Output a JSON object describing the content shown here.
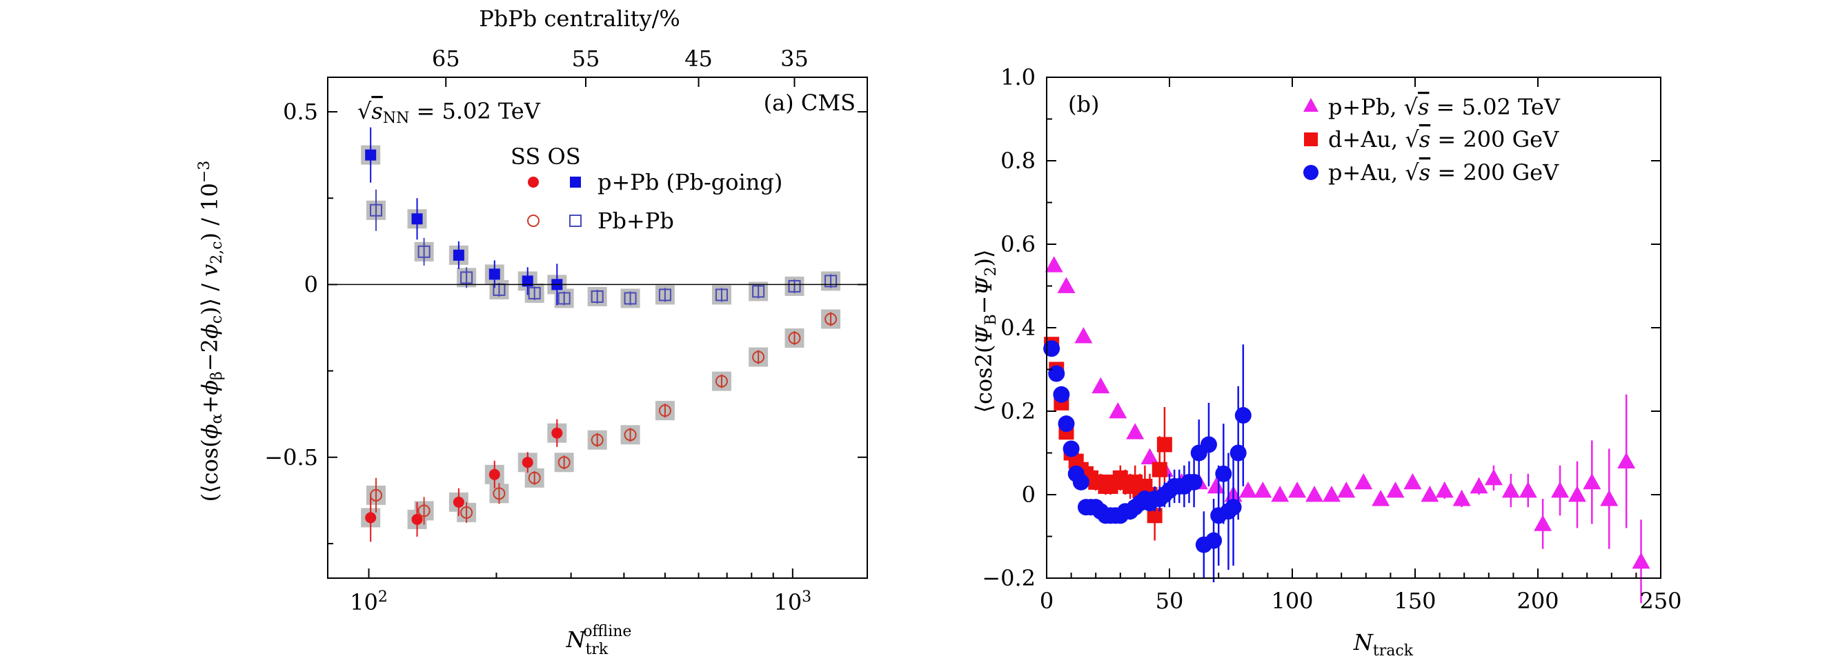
{
  "chart_data": [
    {
      "panel": "(a)",
      "type": "scatter",
      "x_scale": "log",
      "xlim": [
        80,
        1500
      ],
      "ylim": [
        -0.85,
        0.6
      ],
      "xlabel": "N_trk^offline",
      "ylabel": "(<cos(φα+φβ−2φc)>/v2,c)/10^-3",
      "top_axis_label": "PbPb centrality/%",
      "top_ticks": [
        {
          "x": 152,
          "label": "65"
        },
        {
          "x": 325,
          "label": "55"
        },
        {
          "x": 600,
          "label": "45"
        },
        {
          "x": 1010,
          "label": "35"
        }
      ],
      "x_ticks": [
        {
          "x": 100,
          "label": "10^2"
        },
        {
          "x": 1000,
          "label": "10^3"
        }
      ],
      "y_ticks": [
        {
          "y": 0.5,
          "label": "0.5"
        },
        {
          "y": 0,
          "label": "0"
        },
        {
          "y": -0.5,
          "label": "−0.5"
        }
      ],
      "annotations": [
        "√sNN = 5.02 TeV",
        "(a) CMS"
      ],
      "legend_header": "SS OS",
      "legend": [
        "p+Pb (Pb-going)",
        "Pb+Pb"
      ],
      "series": [
        {
          "name": "p+Pb SS",
          "marker": "filled-circle",
          "color": "#e8141c",
          "x": [
            101,
            130,
            163,
            198,
            237,
            278
          ],
          "y": [
            -0.675,
            -0.68,
            -0.63,
            -0.55,
            -0.515,
            -0.43
          ],
          "err": [
            0.07,
            0.05,
            0.04,
            0.04,
            0.03,
            0.04
          ]
        },
        {
          "name": "p+Pb OS",
          "marker": "filled-square",
          "color": "#1010e0",
          "x": [
            101,
            130,
            163,
            198,
            237,
            278
          ],
          "y": [
            0.375,
            0.19,
            0.085,
            0.03,
            0.01,
            0.0
          ],
          "err": [
            0.08,
            0.06,
            0.04,
            0.04,
            0.04,
            0.06
          ]
        },
        {
          "name": "Pb+Pb SS",
          "marker": "open-circle",
          "color": "#cc3a2a",
          "x": [
            104,
            135,
            170,
            203,
            246,
            289,
            346,
            414,
            500,
            680,
            830,
            1010,
            1230
          ],
          "y": [
            -0.61,
            -0.655,
            -0.66,
            -0.605,
            -0.56,
            -0.515,
            -0.45,
            -0.435,
            -0.365,
            -0.28,
            -0.21,
            -0.155,
            -0.1
          ],
          "err": [
            0.05,
            0.04,
            0.03,
            0.03,
            0.02,
            0.02,
            0.02,
            0.02,
            0.02,
            0.02,
            0.02,
            0.02,
            0.02
          ]
        },
        {
          "name": "Pb+Pb OS",
          "marker": "open-square",
          "color": "#4a4ab8",
          "x": [
            104,
            135,
            170,
            203,
            246,
            289,
            346,
            414,
            500,
            680,
            830,
            1010,
            1230
          ],
          "y": [
            0.215,
            0.095,
            0.02,
            -0.015,
            -0.025,
            -0.04,
            -0.035,
            -0.04,
            -0.03,
            -0.03,
            -0.02,
            -0.005,
            0.01
          ],
          "err": [
            0.06,
            0.04,
            0.03,
            0.02,
            0.02,
            0.02,
            0.02,
            0.02,
            0.02,
            0.02,
            0.02,
            0.02,
            0.02
          ]
        }
      ]
    },
    {
      "panel": "(b)",
      "type": "scatter",
      "xlim": [
        0,
        250
      ],
      "ylim": [
        -0.2,
        1.0
      ],
      "xlabel": "N_track",
      "ylabel": "<cos2(ΨB−Ψ2)>",
      "x_ticks": [
        {
          "x": 0,
          "label": "0"
        },
        {
          "x": 50,
          "label": "50"
        },
        {
          "x": 100,
          "label": "100"
        },
        {
          "x": 150,
          "label": "150"
        },
        {
          "x": 200,
          "label": "200"
        },
        {
          "x": 250,
          "label": "250"
        }
      ],
      "y_ticks": [
        {
          "y": -0.2,
          "label": "−0.2"
        },
        {
          "y": 0,
          "label": "0"
        },
        {
          "y": 0.2,
          "label": "0.2"
        },
        {
          "y": 0.4,
          "label": "0.4"
        },
        {
          "y": 0.6,
          "label": "0.6"
        },
        {
          "y": 0.8,
          "label": "0.8"
        },
        {
          "y": 1.0,
          "label": "1.0"
        }
      ],
      "legend": [
        {
          "label": "p+Pb, √s = 5.02 TeV",
          "marker": "triangle",
          "color": "#ee22ee"
        },
        {
          "label": "d+Au, √s = 200 GeV",
          "marker": "square",
          "color": "#ee1111"
        },
        {
          "label": "p+Au, √s = 200 GeV",
          "marker": "circle",
          "color": "#1111ee"
        }
      ],
      "series": [
        {
          "name": "p+Pb",
          "marker": "triangle",
          "color": "#ee22ee",
          "x": [
            3,
            8,
            15,
            22,
            29,
            36,
            42,
            48,
            55,
            62,
            69,
            76,
            82,
            88,
            95,
            102,
            109,
            116,
            122,
            129,
            136,
            142,
            149,
            156,
            162,
            169,
            176,
            182,
            189,
            196,
            202,
            209,
            216,
            222,
            229,
            236,
            242
          ],
          "y": [
            0.55,
            0.5,
            0.38,
            0.26,
            0.2,
            0.15,
            0.09,
            0.06,
            0.03,
            0.03,
            0.02,
            0.0,
            0.01,
            0.01,
            0.0,
            0.01,
            0.0,
            0.0,
            0.01,
            0.03,
            -0.01,
            0.01,
            0.03,
            0.0,
            0.01,
            -0.01,
            0.02,
            0.04,
            0.01,
            0.01,
            -0.07,
            0.01,
            0.0,
            0.03,
            -0.01,
            0.08,
            -0.16
          ],
          "err": [
            0.01,
            0.01,
            0.01,
            0.01,
            0.01,
            0.01,
            0.01,
            0.01,
            0.01,
            0.01,
            0.01,
            0.01,
            0.01,
            0.01,
            0.01,
            0.01,
            0.01,
            0.01,
            0.01,
            0.01,
            0.01,
            0.01,
            0.01,
            0.01,
            0.02,
            0.02,
            0.02,
            0.03,
            0.04,
            0.04,
            0.06,
            0.06,
            0.08,
            0.1,
            0.12,
            0.16,
            0.1
          ]
        },
        {
          "name": "d+Au",
          "marker": "square",
          "color": "#ee1111",
          "x": [
            2,
            4,
            6,
            8,
            10,
            12,
            14,
            16,
            18,
            20,
            22,
            24,
            26,
            28,
            30,
            32,
            34,
            36,
            38,
            40,
            42,
            44,
            46,
            48
          ],
          "y": [
            0.36,
            0.3,
            0.22,
            0.15,
            0.1,
            0.08,
            0.06,
            0.05,
            0.04,
            0.03,
            0.03,
            0.02,
            0.02,
            0.03,
            0.04,
            0.03,
            0.02,
            0.03,
            0.01,
            0.02,
            0.0,
            -0.05,
            0.06,
            0.12
          ],
          "err": [
            0.01,
            0.01,
            0.01,
            0.01,
            0.01,
            0.01,
            0.01,
            0.01,
            0.01,
            0.02,
            0.02,
            0.02,
            0.02,
            0.02,
            0.03,
            0.03,
            0.03,
            0.04,
            0.04,
            0.05,
            0.05,
            0.06,
            0.08,
            0.09
          ]
        },
        {
          "name": "p+Au",
          "marker": "circle",
          "color": "#1111ee",
          "x": [
            2,
            4,
            6,
            8,
            10,
            12,
            14,
            16,
            18,
            20,
            22,
            24,
            26,
            28,
            30,
            32,
            34,
            36,
            38,
            40,
            42,
            44,
            46,
            48,
            50,
            52,
            54,
            56,
            58,
            60,
            62,
            64,
            66,
            68,
            70,
            72,
            74,
            76,
            78,
            80
          ],
          "y": [
            0.35,
            0.29,
            0.24,
            0.17,
            0.11,
            0.05,
            0.03,
            -0.03,
            -0.03,
            -0.03,
            -0.04,
            -0.05,
            -0.05,
            -0.05,
            -0.05,
            -0.04,
            -0.04,
            -0.03,
            -0.02,
            -0.01,
            -0.02,
            -0.01,
            -0.01,
            0.0,
            0.01,
            0.02,
            0.02,
            0.02,
            0.03,
            0.03,
            0.1,
            -0.12,
            0.12,
            -0.11,
            -0.05,
            0.05,
            -0.04,
            -0.03,
            0.1,
            0.19
          ],
          "err": [
            0.01,
            0.01,
            0.01,
            0.01,
            0.01,
            0.01,
            0.01,
            0.01,
            0.01,
            0.01,
            0.01,
            0.01,
            0.01,
            0.01,
            0.01,
            0.01,
            0.02,
            0.02,
            0.02,
            0.02,
            0.02,
            0.03,
            0.03,
            0.03,
            0.04,
            0.04,
            0.04,
            0.05,
            0.05,
            0.06,
            0.08,
            0.08,
            0.1,
            0.1,
            0.12,
            0.12,
            0.14,
            0.14,
            0.16,
            0.17
          ]
        }
      ]
    }
  ]
}
